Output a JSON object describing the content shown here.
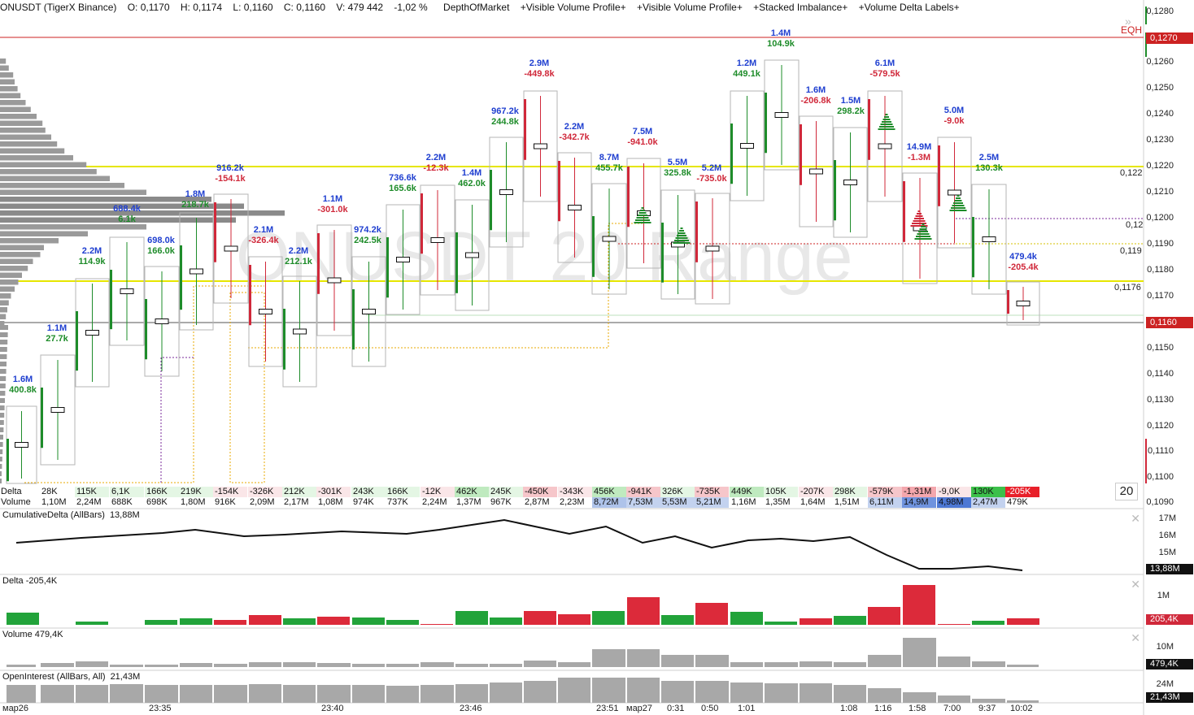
{
  "header": {
    "symbol": "ONUSDT (TigerX Binance)",
    "open": "O: 0,1170",
    "high": "H: 0,1174",
    "low": "L: 0,1160",
    "close": "C: 0,1160",
    "volume": "V: 479 442",
    "change": "-1,02 %",
    "indicators": [
      "DepthOfMarket",
      "+Visible Volume Profile+",
      "+Visible Volume Profile+",
      "+Stacked Imbalance+",
      "+Volume Delta Labels+"
    ]
  },
  "watermark": "ONUSDT 20 Range",
  "price_axis": {
    "ticks": [
      "0,1280",
      "0,1260",
      "0,1250",
      "0,1240",
      "0,1230",
      "0,1220",
      "0,1210",
      "0,1200",
      "0,1190",
      "0,1180",
      "0,1170",
      "0,1150",
      "0,1140",
      "0,1130",
      "0,1120",
      "0,1110",
      "0,1100",
      "0,1090"
    ],
    "eqh_label": "EQH",
    "eqh_price": "0,1270",
    "last_price": "0,1160"
  },
  "level_labels": [
    "0,122",
    "0,12",
    "0,119",
    "0,1176"
  ],
  "colors": {
    "up": "#1e8c2a",
    "down": "#d0283a",
    "blue_label": "#1f3fd0",
    "yellow": "#e6e600",
    "eqh": "#cc2222",
    "profile": "#9a9a9a"
  },
  "bar_labels": [
    {
      "vol": "1.6M",
      "delta": "400.8k"
    },
    {
      "vol": "1.1M",
      "delta": "27.7k"
    },
    {
      "vol": "2.2M",
      "delta": "114.9k"
    },
    {
      "vol": "688.4k",
      "delta": "6.1k"
    },
    {
      "vol": "698.0k",
      "delta": "166.0k"
    },
    {
      "vol": "1.8M",
      "delta": "218.7k"
    },
    {
      "vol": "916.2k",
      "delta": "-154.1k"
    },
    {
      "vol": "2.1M",
      "delta": "-326.4k"
    },
    {
      "vol": "2.2M",
      "delta": "212.1k"
    },
    {
      "vol": "1.1M",
      "delta": "-301.0k"
    },
    {
      "vol": "974.2k",
      "delta": "242.5k"
    },
    {
      "vol": "736.6k",
      "delta": "165.6k"
    },
    {
      "vol": "2.2M",
      "delta": "-12.3k"
    },
    {
      "vol": "1.4M",
      "delta": "462.0k"
    },
    {
      "vol": "967.2k",
      "delta": "244.8k"
    },
    {
      "vol": "2.9M",
      "delta": "-449.8k"
    },
    {
      "vol": "2.2M",
      "delta": "-342.7k"
    },
    {
      "vol": "8.7M",
      "delta": "455.7k"
    },
    {
      "vol": "7.5M",
      "delta": "-941.0k"
    },
    {
      "vol": "5.5M",
      "delta": "325.8k"
    },
    {
      "vol": "5.2M",
      "delta": "-735.0k"
    },
    {
      "vol": "1.2M",
      "delta": "449.1k"
    },
    {
      "vol": "1.4M",
      "delta": "104.9k"
    },
    {
      "vol": "1.6M",
      "delta": "-206.8k"
    },
    {
      "vol": "1.5M",
      "delta": "298.2k"
    },
    {
      "vol": "6.1M",
      "delta": "-579.5k"
    },
    {
      "vol": "14.9M",
      "delta": "-1.3M"
    },
    {
      "vol": "5.0M",
      "delta": "-9.0k"
    },
    {
      "vol": "2.5M",
      "delta": "130.3k"
    },
    {
      "vol": "479.4k",
      "delta": "-205.4k"
    }
  ],
  "table": {
    "delta_label": "Delta",
    "volume_label": "Volume",
    "delta": [
      "28K",
      "115K",
      "6,1K",
      "166K",
      "219K",
      "-154K",
      "-326K",
      "212K",
      "-301K",
      "243K",
      "166K",
      "-12K",
      "462K",
      "245K",
      "-450K",
      "-343K",
      "456K",
      "-941K",
      "326K",
      "-735K",
      "449K",
      "105K",
      "-207K",
      "298K",
      "-579K",
      "-1,31M",
      "-9,0K",
      "130K",
      "-205K"
    ],
    "volume": [
      "1,10M",
      "2,24M",
      "688K",
      "698K",
      "1,80M",
      "916K",
      "2,09M",
      "2,17M",
      "1,08M",
      "974K",
      "737K",
      "2,24M",
      "1,37M",
      "967K",
      "2,87M",
      "2,23M",
      "8,72M",
      "7,53M",
      "5,53M",
      "5,21M",
      "1,16M",
      "1,35M",
      "1,64M",
      "1,51M",
      "6,11M",
      "14,9M",
      "4,98M",
      "2,47M",
      "479K"
    ],
    "range_value": "20"
  },
  "panels": {
    "cumdelta": {
      "title": "CumulativeDelta (AllBars)",
      "value": "13,88M",
      "ticks": [
        "17M",
        "16M",
        "15M"
      ],
      "tag": "13,88M"
    },
    "delta": {
      "title": "Delta",
      "value": "-205,4K",
      "ticks": [
        "1M"
      ],
      "tag": "205,4K"
    },
    "volume": {
      "title": "Volume",
      "value": "479,4K",
      "ticks": [
        "10M"
      ],
      "tag": "479,4K"
    },
    "oi": {
      "title": "OpenInterest (AllBars, All)",
      "value": "21,43M",
      "ticks": [
        "24M"
      ],
      "tag": "21,43M"
    }
  },
  "time_axis": [
    "мар26",
    "23:35",
    "23:40",
    "23:46",
    "23:51",
    "мар27",
    "0:31",
    "0:50",
    "1:01",
    "1:08",
    "1:16",
    "1:58",
    "7:00",
    "9:37",
    "10:02"
  ],
  "close_icon": "✕"
}
